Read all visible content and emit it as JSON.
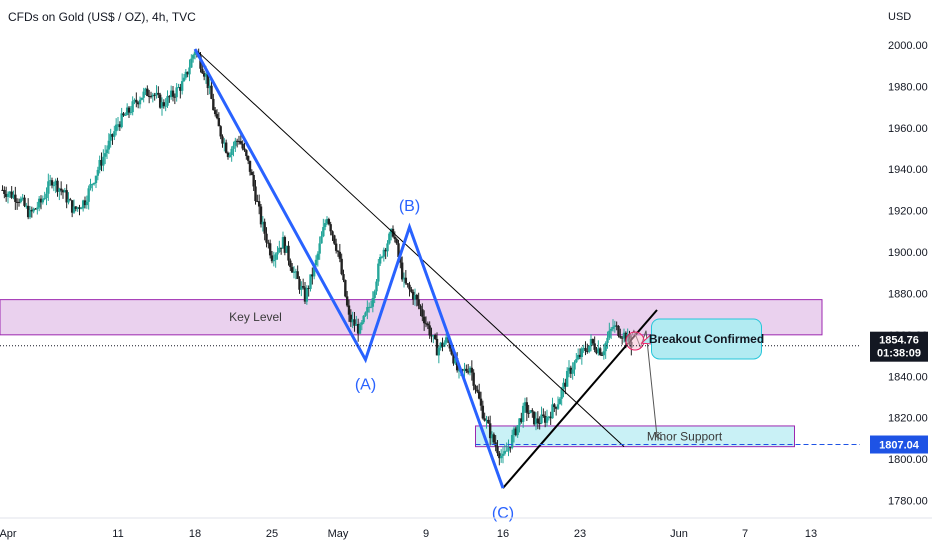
{
  "header": {
    "title": "CFDs on Gold (US$ / OZ), 4h, TVC"
  },
  "chart_data": {
    "type": "candlestick",
    "symbol": "CFDs on Gold (US$ / OZ), 4h, TVC",
    "currency": "USD",
    "y_ticks": [
      "2000.00",
      "1980.00",
      "1960.00",
      "1940.00",
      "1920.00",
      "1900.00",
      "1880.00",
      "1860.00",
      "1840.00",
      "1820.00",
      "1800.00",
      "1780.00"
    ],
    "y_range": [
      1773,
      2013
    ],
    "x_ticks": [
      {
        "label": "Apr",
        "day": 0
      },
      {
        "label": "11",
        "day": 10
      },
      {
        "label": "18",
        "day": 17
      },
      {
        "label": "25",
        "day": 24
      },
      {
        "label": "May",
        "day": 30
      },
      {
        "label": "9",
        "day": 38
      },
      {
        "label": "16",
        "day": 45
      },
      {
        "label": "23",
        "day": 52
      },
      {
        "label": "Jun",
        "day": 61
      },
      {
        "label": "7",
        "day": 67
      },
      {
        "label": "13",
        "day": 73
      }
    ],
    "x_range_days": [
      0,
      74
    ],
    "price_path": [
      {
        "day": -0.5,
        "price": 1930
      },
      {
        "day": 1,
        "price": 1926
      },
      {
        "day": 2,
        "price": 1918
      },
      {
        "day": 3,
        "price": 1924
      },
      {
        "day": 4,
        "price": 1935
      },
      {
        "day": 5,
        "price": 1929
      },
      {
        "day": 6,
        "price": 1920
      },
      {
        "day": 7,
        "price": 1925
      },
      {
        "day": 8,
        "price": 1938
      },
      {
        "day": 9,
        "price": 1950
      },
      {
        "day": 10,
        "price": 1962
      },
      {
        "day": 11,
        "price": 1968
      },
      {
        "day": 12,
        "price": 1975
      },
      {
        "day": 13,
        "price": 1978
      },
      {
        "day": 14,
        "price": 1971
      },
      {
        "day": 15,
        "price": 1976
      },
      {
        "day": 16,
        "price": 1982
      },
      {
        "day": 17,
        "price": 1998
      },
      {
        "day": 18,
        "price": 1985
      },
      {
        "day": 19,
        "price": 1962
      },
      {
        "day": 20,
        "price": 1948
      },
      {
        "day": 21,
        "price": 1955
      },
      {
        "day": 22,
        "price": 1940
      },
      {
        "day": 23,
        "price": 1915
      },
      {
        "day": 24,
        "price": 1898
      },
      {
        "day": 25,
        "price": 1905
      },
      {
        "day": 26,
        "price": 1890
      },
      {
        "day": 27,
        "price": 1878
      },
      {
        "day": 28,
        "price": 1895
      },
      {
        "day": 29,
        "price": 1918
      },
      {
        "day": 30,
        "price": 1900
      },
      {
        "day": 31,
        "price": 1868
      },
      {
        "day": 32,
        "price": 1862
      },
      {
        "day": 33,
        "price": 1876
      },
      {
        "day": 34,
        "price": 1900
      },
      {
        "day": 35,
        "price": 1910
      },
      {
        "day": 36,
        "price": 1885
      },
      {
        "day": 37,
        "price": 1878
      },
      {
        "day": 38,
        "price": 1866
      },
      {
        "day": 39,
        "price": 1853
      },
      {
        "day": 40,
        "price": 1858
      },
      {
        "day": 41,
        "price": 1840
      },
      {
        "day": 42,
        "price": 1845
      },
      {
        "day": 43,
        "price": 1825
      },
      {
        "day": 44,
        "price": 1810
      },
      {
        "day": 45,
        "price": 1800
      },
      {
        "day": 46,
        "price": 1812
      },
      {
        "day": 47,
        "price": 1825
      },
      {
        "day": 48,
        "price": 1818
      },
      {
        "day": 49,
        "price": 1820
      },
      {
        "day": 50,
        "price": 1828
      },
      {
        "day": 51,
        "price": 1842
      },
      {
        "day": 52,
        "price": 1850
      },
      {
        "day": 53,
        "price": 1856
      },
      {
        "day": 54,
        "price": 1852
      },
      {
        "day": 55,
        "price": 1864
      },
      {
        "day": 56,
        "price": 1860
      },
      {
        "day": 56.8,
        "price": 1854.76
      }
    ],
    "zones": [
      {
        "label": "Key Level",
        "from": 1860,
        "to": 1877,
        "color": "#e1bee7",
        "border": "#9c27b0"
      },
      {
        "label": "Minor Support",
        "from": 1806,
        "to": 1816,
        "color": "#b2ebf2",
        "border": "#9c27b0"
      }
    ],
    "abc_wave": [
      {
        "label": "",
        "day": 17,
        "price": 1998
      },
      {
        "label": "(A)",
        "day": 32.5,
        "price": 1848
      },
      {
        "label": "(B)",
        "day": 36.5,
        "price": 1912
      },
      {
        "label": "(C)",
        "day": 45,
        "price": 1786
      }
    ],
    "trendlines": [
      {
        "from": {
          "day": 17,
          "price": 1998
        },
        "to": {
          "day": 56,
          "price": 1806
        }
      },
      {
        "from": {
          "day": 45,
          "price": 1786
        },
        "to": {
          "day": 59,
          "price": 1872
        }
      }
    ],
    "projection": [
      {
        "day": 56.3,
        "price": 1855
      },
      {
        "day": 56.9,
        "price": 1862
      },
      {
        "day": 57.5,
        "price": 1854
      },
      {
        "day": 58,
        "price": 1862
      },
      {
        "day": 59,
        "price": 1811
      }
    ],
    "annotations": [
      {
        "text": "Breakout Confirmed",
        "day": 63.5,
        "price": 1858,
        "color": "#b2ebf2"
      }
    ],
    "last_price": "1854.76",
    "countdown": "01:38:09",
    "support_price": "1807.04",
    "colors": {
      "up": "#26a69a",
      "down": "#222222",
      "wave": "#2962ff",
      "price_tag": "#131722",
      "support_tag": "#1e53e5"
    }
  }
}
